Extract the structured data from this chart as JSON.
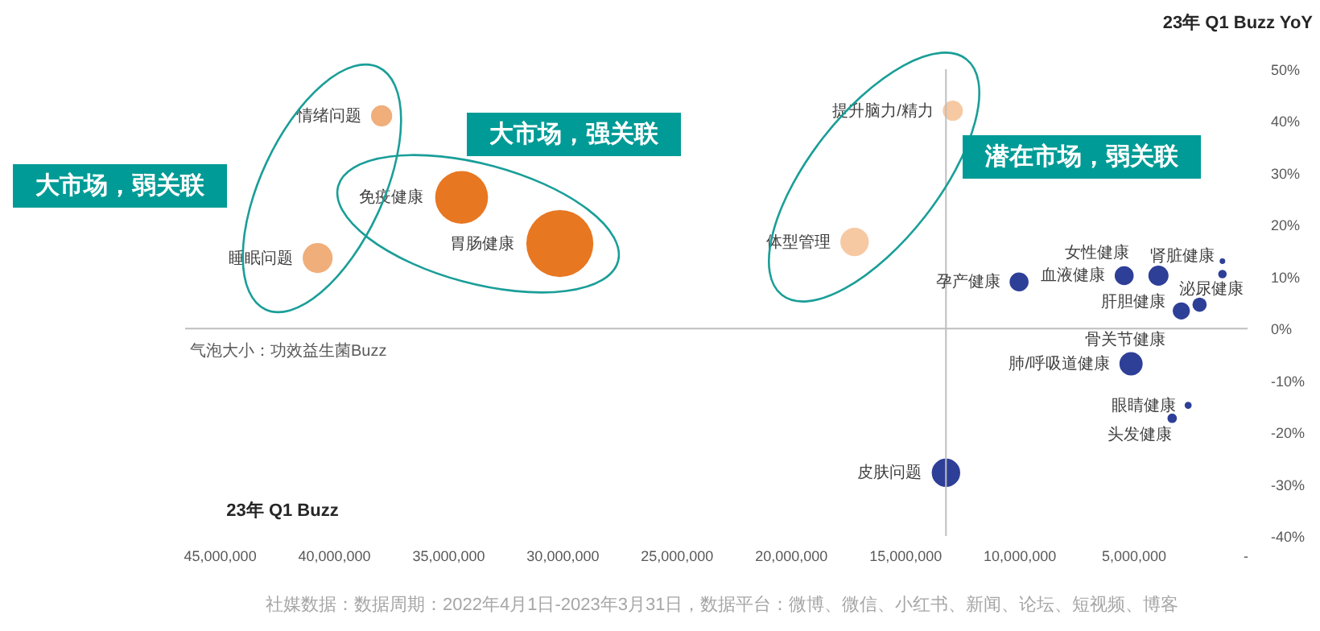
{
  "chart_data": {
    "type": "bubble",
    "xlabel": "23年 Q1 Buzz",
    "ylabel": "23年 Q1 Buzz YoY",
    "x": [
      12900000,
      17200000,
      37900000,
      40700000,
      34400000,
      30100000,
      10000000,
      5400000,
      3900000,
      1100000,
      1100000,
      2100000,
      2900000,
      5100000,
      2600000,
      3300000,
      13200000
    ],
    "values": [
      42,
      16.7,
      41,
      13.6,
      25.3,
      16.4,
      9,
      10.2,
      10.2,
      13,
      10.5,
      4.6,
      3.4,
      -6.8,
      -14.8,
      -17.3,
      -27.8
    ],
    "sizes": [
      0.09,
      0.18,
      0.1,
      0.2,
      0.62,
      1,
      0.08,
      0.08,
      0.09,
      0.007,
      0.016,
      0.045,
      0.065,
      0.12,
      0.011,
      0.02,
      0.18
    ],
    "colors": [
      "#f6c9a3",
      "#f6c9a3",
      "#f0ae7a",
      "#f0ae7a",
      "#e87722",
      "#e87722",
      "#2e3f98",
      "#2e3f98",
      "#2e3f98",
      "#2e3f98",
      "#2e3f98",
      "#2e3f98",
      "#2e3f98",
      "#2e3f98",
      "#2e3f98",
      "#2e3f98",
      "#2e3f98"
    ],
    "xlim": [
      46500000,
      0
    ],
    "xticks": [
      {
        "value": 0,
        "label": "-"
      },
      {
        "value": 5000000,
        "label": "5,000,000"
      },
      {
        "value": 10000000,
        "label": "10,000,000"
      },
      {
        "value": 15000000,
        "label": "15,000,000"
      },
      {
        "value": 20000000,
        "label": "20,000,000"
      },
      {
        "value": 25000000,
        "label": "25,000,000"
      },
      {
        "value": 30000000,
        "label": "30,000,000"
      },
      {
        "value": 35000000,
        "label": "35,000,000"
      },
      {
        "value": 40000000,
        "label": "40,000,000"
      },
      {
        "value": 45000000,
        "label": "45,000,000"
      }
    ],
    "ylim": [
      -40,
      50
    ],
    "yticks": [
      {
        "value": 50,
        "label": "50%"
      },
      {
        "value": 40,
        "label": "40%"
      },
      {
        "value": 30,
        "label": "30%"
      },
      {
        "value": 20,
        "label": "20%"
      },
      {
        "value": 10,
        "label": "10%"
      },
      {
        "value": 0,
        "label": "0%"
      },
      {
        "value": -10,
        "label": "-10%"
      },
      {
        "value": -20,
        "label": "-20%"
      },
      {
        "value": -30,
        "label": "-30%"
      },
      {
        "value": -40,
        "label": "-40%"
      }
    ],
    "ref_lines": [
      {
        "axis": "y",
        "value": 0,
        "color": "#bfbfbf"
      },
      {
        "axis": "x",
        "value": 13200000,
        "color": "#bfbfbf"
      }
    ],
    "grid": false,
    "annotations": [
      {
        "text": "提升脑力/精力",
        "x": 12900000,
        "y": 42
      },
      {
        "text": "体型管理",
        "x": 17200000,
        "y": 16.7
      },
      {
        "text": "情绪问题",
        "x": 37900000,
        "y": 41
      },
      {
        "text": "睡眠问题",
        "x": 40700000,
        "y": 13.6
      },
      {
        "text": "免疫健康",
        "x": 34400000,
        "y": 25.3
      },
      {
        "text": "胃肠健康",
        "x": 30100000,
        "y": 16.4
      },
      {
        "text": "孕产健康",
        "x": 10000000,
        "y": 9
      },
      {
        "text": "血液健康",
        "x": 5400000,
        "y": 10.2
      },
      {
        "text": "女性健康",
        "x": 3900000,
        "y": 10.2
      },
      {
        "text": "肾脏健康",
        "x": 1100000,
        "y": 13
      },
      {
        "text": "泌尿健康",
        "x": 1100000,
        "y": 10.5
      },
      {
        "text": "肝胆健康",
        "x": 2100000,
        "y": 4.6
      },
      {
        "text": "骨关节健康",
        "x": 2900000,
        "y": 3.4
      },
      {
        "text": "肺/呼吸道健康",
        "x": 5100000,
        "y": -6.8
      },
      {
        "text": "眼睛健康",
        "x": 2600000,
        "y": -14.8
      },
      {
        "text": "头发健康",
        "x": 3300000,
        "y": -17.3
      },
      {
        "text": "皮肤问题",
        "x": 13200000,
        "y": -27.8
      },
      "大市场，弱关联",
      "大市场，强关联",
      "潜在市场，弱关联",
      "气泡大小：功效益生菌Buzz",
      "社媒数据：数据周期：2022年4月1日-2023年3月31日，数据平台：微博、微信、小红书、新闻、论坛、短视频、博客"
    ]
  }
}
